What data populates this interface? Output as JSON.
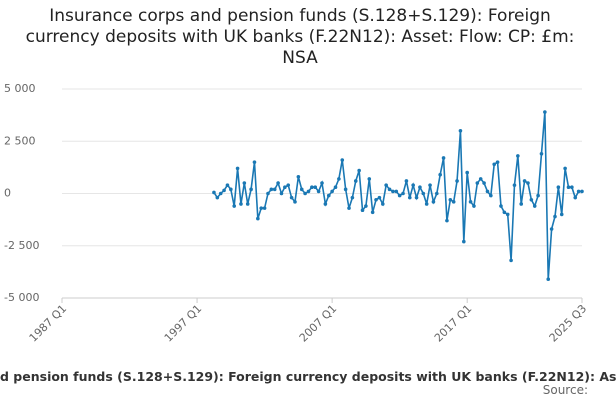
{
  "chart_data": {
    "type": "line",
    "title": "Insurance corps and pension funds (S.128+S.129): Foreign currency deposits with UK banks (F.22N12): Asset: Flow: CP: £m: NSA",
    "caption": "d pension funds (S.128+S.129): Foreign currency deposits with UK banks (F.22N12): As",
    "source": "Source:",
    "color": "#1a78b4",
    "grid": true,
    "xlim": [
      "1987 Q1",
      "2025 Q3"
    ],
    "xticks": [
      "1987 Q1",
      "1997 Q1",
      "2007 Q1",
      "2017 Q1",
      "2025 Q3"
    ],
    "ylim": [
      -5000,
      5000
    ],
    "yticks": [
      {
        "value": -5000,
        "label": "-5 000"
      },
      {
        "value": -2500,
        "label": "-2 500"
      },
      0,
      {
        "value": 2500,
        "label": "2 500"
      },
      {
        "value": 5000,
        "label": "5 000"
      }
    ],
    "x": [
      "1998 Q2",
      "1998 Q3",
      "1998 Q4",
      "1999 Q1",
      "1999 Q2",
      "1999 Q3",
      "1999 Q4",
      "2000 Q1",
      "2000 Q2",
      "2000 Q3",
      "2000 Q4",
      "2001 Q1",
      "2001 Q2",
      "2001 Q3",
      "2001 Q4",
      "2002 Q1",
      "2002 Q2",
      "2002 Q3",
      "2002 Q4",
      "2003 Q1",
      "2003 Q2",
      "2003 Q3",
      "2003 Q4",
      "2004 Q1",
      "2004 Q2",
      "2004 Q3",
      "2004 Q4",
      "2005 Q1",
      "2005 Q2",
      "2005 Q3",
      "2005 Q4",
      "2006 Q1",
      "2006 Q2",
      "2006 Q3",
      "2006 Q4",
      "2007 Q1",
      "2007 Q2",
      "2007 Q3",
      "2007 Q4",
      "2008 Q1",
      "2008 Q2",
      "2008 Q3",
      "2008 Q4",
      "2009 Q1",
      "2009 Q2",
      "2009 Q3",
      "2009 Q4",
      "2010 Q1",
      "2010 Q2",
      "2010 Q3",
      "2010 Q4",
      "2011 Q1",
      "2011 Q2",
      "2011 Q3",
      "2011 Q4",
      "2012 Q1",
      "2012 Q2",
      "2012 Q3",
      "2012 Q4",
      "2013 Q1",
      "2013 Q2",
      "2013 Q3",
      "2013 Q4",
      "2014 Q1",
      "2014 Q2",
      "2014 Q3",
      "2014 Q4",
      "2015 Q1",
      "2015 Q2",
      "2015 Q3",
      "2015 Q4",
      "2016 Q1",
      "2016 Q2",
      "2016 Q3",
      "2016 Q4",
      "2017 Q1",
      "2017 Q2",
      "2017 Q3",
      "2017 Q4",
      "2018 Q1",
      "2018 Q2",
      "2018 Q3",
      "2018 Q4",
      "2019 Q1",
      "2019 Q2",
      "2019 Q3",
      "2019 Q4",
      "2020 Q1",
      "2020 Q2",
      "2020 Q3",
      "2020 Q4",
      "2021 Q1",
      "2021 Q2",
      "2021 Q3",
      "2021 Q4",
      "2022 Q1",
      "2022 Q2",
      "2022 Q3",
      "2022 Q4",
      "2023 Q1",
      "2023 Q2",
      "2023 Q3",
      "2023 Q4",
      "2024 Q1",
      "2024 Q2",
      "2024 Q3",
      "2024 Q4",
      "2025 Q1",
      "2025 Q2",
      "2025 Q3"
    ],
    "values": [
      50,
      -200,
      0,
      150,
      400,
      200,
      -600,
      1200,
      -500,
      500,
      -500,
      200,
      1500,
      -1200,
      -700,
      -700,
      0,
      200,
      200,
      500,
      0,
      300,
      400,
      -200,
      -400,
      800,
      200,
      0,
      100,
      300,
      300,
      100,
      500,
      -500,
      -100,
      100,
      300,
      700,
      1600,
      200,
      -700,
      -200,
      600,
      1100,
      -800,
      -600,
      700,
      -900,
      -300,
      -200,
      -500,
      400,
      200,
      100,
      100,
      -100,
      0,
      600,
      -200,
      400,
      -200,
      300,
      0,
      -500,
      400,
      -400,
      0,
      900,
      1700,
      -1300,
      -300,
      -400,
      600,
      3000,
      -2300,
      1000,
      -400,
      -600,
      500,
      700,
      500,
      100,
      -100,
      1400,
      1500,
      -600,
      -900,
      -1000,
      -3200,
      400,
      1800,
      -500,
      600,
      500,
      -300,
      -600,
      -100,
      1900,
      3900,
      -4100,
      -1700,
      -1100,
      300,
      -1000,
      1200,
      300,
      300,
      -200,
      100,
      100
    ]
  }
}
